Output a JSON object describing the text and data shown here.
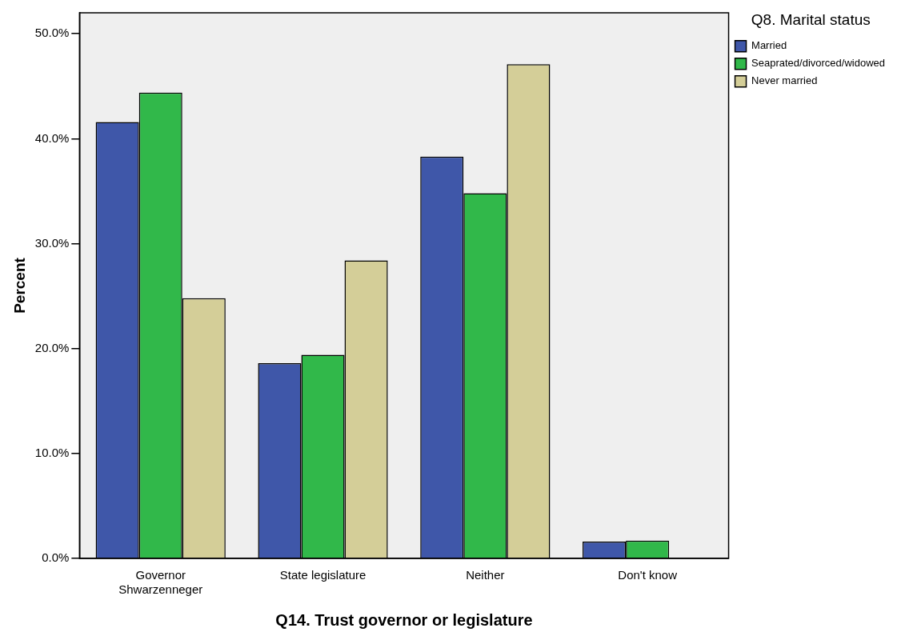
{
  "chart_data": {
    "type": "bar",
    "xlabel": "Q14. Trust governor or legislature",
    "ylabel": "Percent",
    "legend_title": "Q8. Marital status",
    "categories": [
      [
        "Governor",
        "Shwarzenneger"
      ],
      "State legislature",
      "Neither",
      "Don't know"
    ],
    "series": [
      {
        "name": "Married",
        "color": "#3f57a9",
        "values": [
          41.6,
          18.6,
          38.3,
          1.6
        ]
      },
      {
        "name": "Seaprated/divorced/widowed",
        "color": "#31b84a",
        "values": [
          44.4,
          19.4,
          34.8,
          1.7
        ]
      },
      {
        "name": "Never married",
        "color": "#d4ce98",
        "values": [
          24.8,
          28.4,
          47.1,
          null
        ]
      }
    ],
    "ylim": [
      0,
      52
    ],
    "yticks": [
      {
        "value": 0,
        "label": "0.0%"
      },
      {
        "value": 10,
        "label": "10.0%"
      },
      {
        "value": 20,
        "label": "20.0%"
      },
      {
        "value": 30,
        "label": "30.0%"
      },
      {
        "value": 40,
        "label": "40.0%"
      },
      {
        "value": 50,
        "label": "50.0%"
      }
    ],
    "grid": false,
    "legend": "top right"
  }
}
